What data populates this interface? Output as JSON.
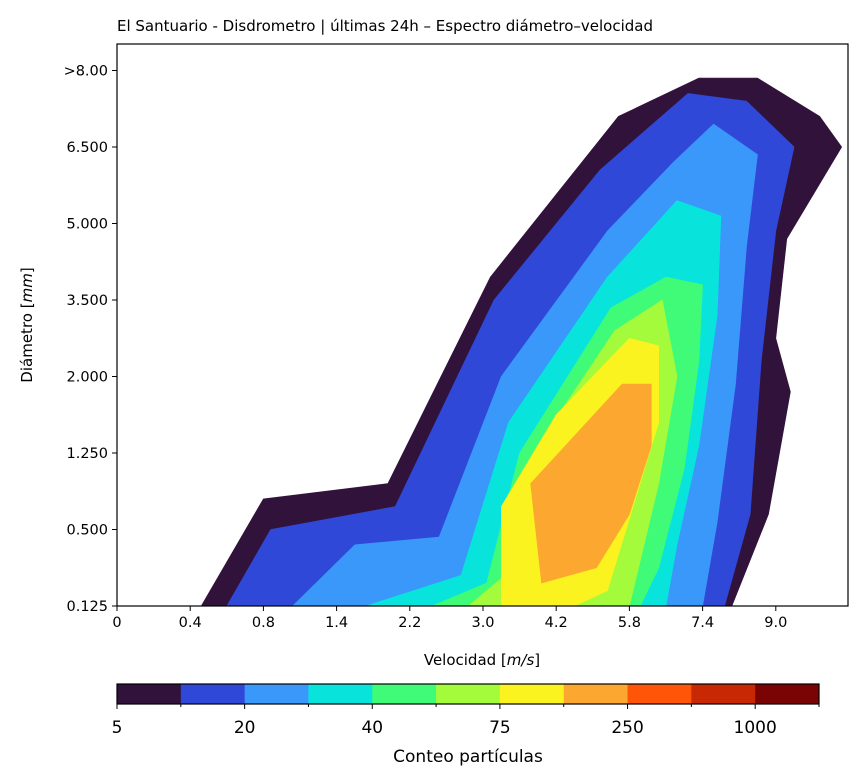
{
  "chart_data": {
    "type": "heatmap",
    "title": "El Santuario - Disdrometro | últimas 24h – Espectro diámetro–velocidad",
    "xlabel_prefix": "Velocidad [",
    "xlabel_unit": "m/s",
    "xlabel_suffix": "]",
    "ylabel_prefix": "Diámetro [",
    "ylabel_unit": "mm",
    "ylabel_suffix": "]",
    "x_ticks": [
      "0",
      "0.4",
      "0.8",
      "1.4",
      "2.2",
      "3.0",
      "4.2",
      "5.8",
      "7.4",
      "9.0"
    ],
    "y_ticks": [
      "0.125",
      "0.500",
      "1.250",
      "2.000",
      "3.500",
      "5.000",
      "6.500",
      ">8.00"
    ],
    "x_scale": "bin index (non-uniform velocity classes)",
    "y_scale": "bin index (non-uniform diameter classes)",
    "colorbar": {
      "label": "Conteo partículas",
      "orientation": "horizontal",
      "tick_labels": [
        "5",
        "20",
        "40",
        "75",
        "250",
        "1000"
      ],
      "colors": [
        "#30123b",
        "#3048d8",
        "#3a98fb",
        "#08e4dc",
        "#3ffb78",
        "#a4fb3c",
        "#fbf31f",
        "#fca830",
        "#fe5508",
        "#c82803",
        "#7a0403"
      ]
    },
    "contour_levels": [
      {
        "level": 1,
        "color": "#30123b",
        "region": [
          [
            2.3,
            0
          ],
          [
            4.0,
            1.4
          ],
          [
            7.4,
            1.6
          ],
          [
            10.2,
            4.3
          ],
          [
            13.7,
            6.4
          ],
          [
            15.9,
            6.9
          ],
          [
            17.5,
            6.9
          ],
          [
            19.2,
            6.4
          ],
          [
            19.8,
            6.0
          ],
          [
            18.3,
            4.8
          ],
          [
            18.0,
            3.5
          ],
          [
            18.4,
            2.8
          ],
          [
            17.8,
            1.2
          ],
          [
            16.8,
            0
          ]
        ]
      },
      {
        "level": 2,
        "color": "#3048d8",
        "region": [
          [
            3.0,
            0
          ],
          [
            4.2,
            1.0
          ],
          [
            7.6,
            1.3
          ],
          [
            10.3,
            4.0
          ],
          [
            13.2,
            5.7
          ],
          [
            15.6,
            6.7
          ],
          [
            17.2,
            6.6
          ],
          [
            18.5,
            6.0
          ],
          [
            18.0,
            4.9
          ],
          [
            17.6,
            3.2
          ],
          [
            17.3,
            1.2
          ],
          [
            16.6,
            0
          ]
        ]
      },
      {
        "level": 3,
        "color": "#3a98fb",
        "region": [
          [
            4.8,
            0
          ],
          [
            6.5,
            0.8
          ],
          [
            8.8,
            0.9
          ],
          [
            10.5,
            3.0
          ],
          [
            13.4,
            4.9
          ],
          [
            15.2,
            5.8
          ],
          [
            16.3,
            6.3
          ],
          [
            17.5,
            5.9
          ],
          [
            17.2,
            4.7
          ],
          [
            16.9,
            2.9
          ],
          [
            16.4,
            1.1
          ],
          [
            16.0,
            0
          ]
        ]
      },
      {
        "level": 4,
        "color": "#08e4dc",
        "region": [
          [
            6.8,
            0
          ],
          [
            9.4,
            0.4
          ],
          [
            10.7,
            2.4
          ],
          [
            13.4,
            4.3
          ],
          [
            15.3,
            5.3
          ],
          [
            16.5,
            5.1
          ],
          [
            16.4,
            3.8
          ],
          [
            15.9,
            2.1
          ],
          [
            15.3,
            0.8
          ],
          [
            15.0,
            0
          ]
        ]
      },
      {
        "level": 5,
        "color": "#3ffb78",
        "region": [
          [
            8.6,
            0
          ],
          [
            10.1,
            0.3
          ],
          [
            11.0,
            2.0
          ],
          [
            13.5,
            3.9
          ],
          [
            15.0,
            4.3
          ],
          [
            16.0,
            4.2
          ],
          [
            15.9,
            3.2
          ],
          [
            15.5,
            1.8
          ],
          [
            14.8,
            0.5
          ],
          [
            14.3,
            0
          ]
        ]
      },
      {
        "level": 6,
        "color": "#a4fb3c",
        "region": [
          [
            9.6,
            0
          ],
          [
            10.6,
            0.4
          ],
          [
            11.5,
            2.1
          ],
          [
            13.6,
            3.6
          ],
          [
            14.9,
            4.0
          ],
          [
            15.3,
            3.0
          ],
          [
            14.8,
            1.6
          ],
          [
            14.0,
            0
          ]
        ]
      },
      {
        "level": 7,
        "color": "#fbf31f",
        "region": [
          [
            10.5,
            0
          ],
          [
            10.5,
            1.3
          ],
          [
            12.0,
            2.5
          ],
          [
            14.0,
            3.5
          ],
          [
            14.8,
            3.4
          ],
          [
            14.8,
            2.4
          ],
          [
            14.1,
            1.3
          ],
          [
            13.4,
            0.2
          ],
          [
            12.5,
            0
          ]
        ]
      },
      {
        "level": 8,
        "color": "#fca830",
        "region": [
          [
            11.6,
            0.3
          ],
          [
            11.3,
            1.6
          ],
          [
            13.8,
            2.9
          ],
          [
            14.6,
            2.9
          ],
          [
            14.6,
            2.1
          ],
          [
            14.0,
            1.2
          ],
          [
            13.1,
            0.5
          ]
        ]
      }
    ]
  }
}
